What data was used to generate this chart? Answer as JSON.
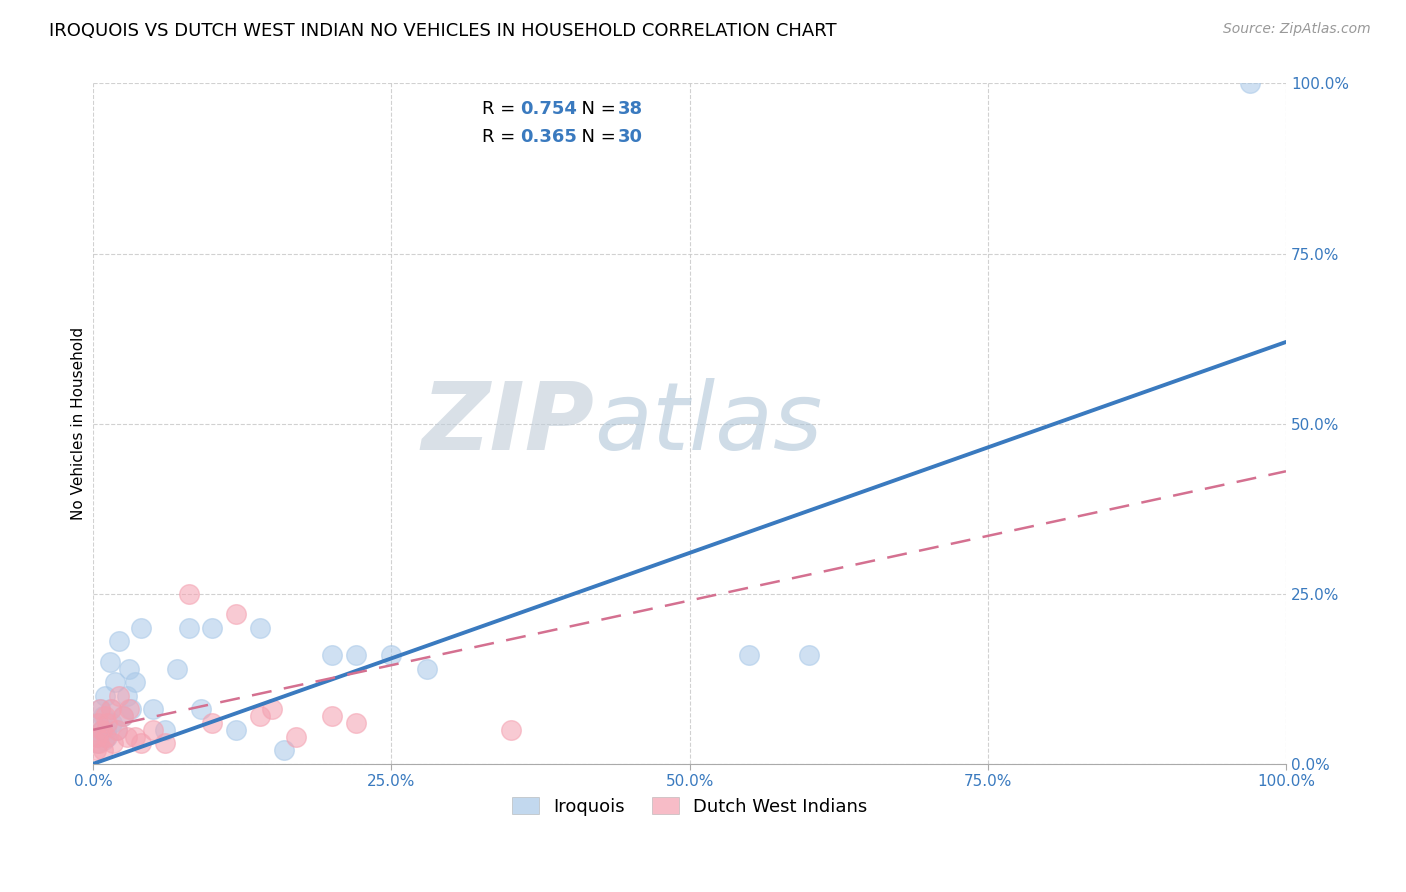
{
  "title": "IROQUOIS VS DUTCH WEST INDIAN NO VEHICLES IN HOUSEHOLD CORRELATION CHART",
  "source": "Source: ZipAtlas.com",
  "ylabel": "No Vehicles in Household",
  "watermark_zip": "ZIP",
  "watermark_atlas": "atlas",
  "iroquois_R": 0.754,
  "iroquois_N": 38,
  "dutch_R": 0.365,
  "dutch_N": 30,
  "iroquois_color": "#a8c8e8",
  "dutch_color": "#f4a0b0",
  "iroquois_line_color": "#3a7abf",
  "dutch_line_color": "#d47090",
  "legend_text_color": "#3a7abf",
  "background_color": "#ffffff",
  "grid_color": "#cccccc",
  "xlim": [
    0,
    100
  ],
  "ylim": [
    0,
    100
  ],
  "xticks": [
    0,
    25,
    50,
    75,
    100
  ],
  "yticks": [
    0,
    25,
    50,
    75,
    100
  ],
  "xticklabels": [
    "0.0%",
    "25.0%",
    "50.0%",
    "75.0%",
    "100.0%"
  ],
  "yticklabels": [
    "0.0%",
    "25.0%",
    "50.0%",
    "75.0%",
    "100.0%"
  ],
  "iroquois_x": [
    0.3,
    0.4,
    0.5,
    0.6,
    0.7,
    0.8,
    0.9,
    1.0,
    1.1,
    1.2,
    1.4,
    1.5,
    1.6,
    1.8,
    2.0,
    2.2,
    2.5,
    2.8,
    3.0,
    3.2,
    3.5,
    4.0,
    5.0,
    6.0,
    7.0,
    8.0,
    9.0,
    10.0,
    12.0,
    14.0,
    16.0,
    20.0,
    22.0,
    25.0,
    28.0,
    55.0,
    60.0,
    97.0
  ],
  "iroquois_y": [
    3.0,
    6.0,
    4.0,
    8.0,
    5.0,
    7.0,
    3.5,
    10.0,
    5.0,
    4.0,
    15.0,
    8.0,
    6.0,
    12.0,
    5.0,
    18.0,
    7.0,
    10.0,
    14.0,
    8.0,
    12.0,
    20.0,
    8.0,
    5.0,
    14.0,
    20.0,
    8.0,
    20.0,
    5.0,
    20.0,
    2.0,
    16.0,
    16.0,
    16.0,
    14.0,
    16.0,
    16.0,
    100.0
  ],
  "dutch_x": [
    0.2,
    0.3,
    0.4,
    0.5,
    0.6,
    0.7,
    0.8,
    1.0,
    1.1,
    1.2,
    1.5,
    1.7,
    2.0,
    2.2,
    2.5,
    2.8,
    3.0,
    3.5,
    4.0,
    5.0,
    6.0,
    8.0,
    10.0,
    12.0,
    14.0,
    15.0,
    17.0,
    20.0,
    22.0,
    35.0
  ],
  "dutch_y": [
    2.0,
    4.0,
    6.0,
    3.0,
    8.0,
    5.0,
    2.0,
    7.0,
    4.0,
    6.0,
    8.0,
    3.0,
    5.0,
    10.0,
    7.0,
    4.0,
    8.0,
    4.0,
    3.0,
    5.0,
    3.0,
    25.0,
    6.0,
    22.0,
    7.0,
    8.0,
    4.0,
    7.0,
    6.0,
    5.0
  ],
  "title_fontsize": 13,
  "axis_label_fontsize": 11,
  "tick_fontsize": 11,
  "legend_fontsize": 13,
  "source_fontsize": 10,
  "marker_size": 200,
  "iroquois_line_start_x": 0,
  "iroquois_line_start_y": 0,
  "iroquois_line_end_x": 100,
  "iroquois_line_end_y": 62,
  "dutch_line_start_x": 0,
  "dutch_line_start_y": 5,
  "dutch_line_end_x": 100,
  "dutch_line_end_y": 43
}
